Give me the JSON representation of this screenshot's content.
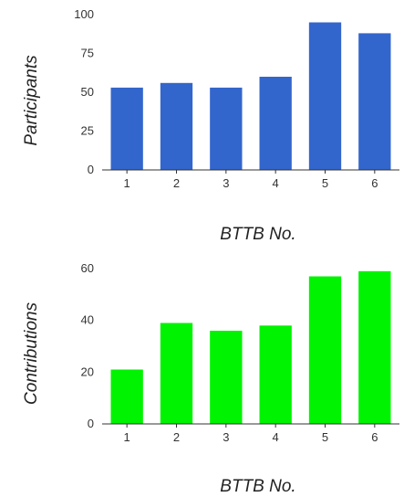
{
  "chart_data": [
    {
      "type": "bar",
      "title": "",
      "xlabel": "BTTB No.",
      "ylabel": "Participants",
      "categories": [
        "1",
        "2",
        "3",
        "4",
        "5",
        "6"
      ],
      "values": [
        53,
        56,
        53,
        60,
        95,
        88
      ],
      "ylim": [
        0,
        100
      ],
      "yticks": [
        0,
        25,
        50,
        75,
        100
      ],
      "grid": false,
      "color": "#3366CC"
    },
    {
      "type": "bar",
      "title": "",
      "xlabel": "BTTB No.",
      "ylabel": "Contributions",
      "categories": [
        "1",
        "2",
        "3",
        "4",
        "5",
        "6"
      ],
      "values": [
        21,
        39,
        36,
        38,
        57,
        59
      ],
      "ylim": [
        0,
        60
      ],
      "yticks": [
        0,
        20,
        40,
        60
      ],
      "grid": false,
      "color": "#00F300"
    }
  ]
}
